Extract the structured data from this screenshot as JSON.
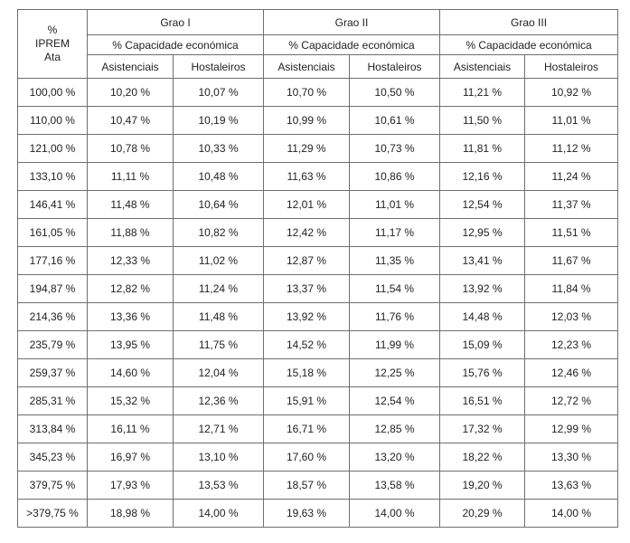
{
  "table": {
    "corner": "% IPREM Ata",
    "groups": [
      {
        "title": "Grao I",
        "subtitle": "% Capacidade económica",
        "columns": [
          "Asistenciais",
          "Hostaleiros"
        ]
      },
      {
        "title": "Grao II",
        "subtitle": "% Capacidade económica",
        "columns": [
          "Asistenciais",
          "Hostaleiros"
        ]
      },
      {
        "title": "Grao III",
        "subtitle": "% Capacidade económica",
        "columns": [
          "Asistenciais",
          "Hostaleiros"
        ]
      }
    ],
    "rows": [
      [
        "100,00 %",
        "10,20 %",
        "10,07 %",
        "10,70 %",
        "10,50 %",
        "11,21 %",
        "10,92 %"
      ],
      [
        "110,00 %",
        "10,47 %",
        "10,19 %",
        "10,99 %",
        "10,61 %",
        "11,50 %",
        "11,01 %"
      ],
      [
        "121,00 %",
        "10,78 %",
        "10,33 %",
        "11,29 %",
        "10,73 %",
        "11,81 %",
        "11,12 %"
      ],
      [
        "133,10 %",
        "11,11 %",
        "10,48 %",
        "11,63 %",
        "10,86 %",
        "12,16 %",
        "11,24 %"
      ],
      [
        "146,41 %",
        "11,48 %",
        "10,64 %",
        "12,01 %",
        "11,01 %",
        "12,54 %",
        "11,37 %"
      ],
      [
        "161,05 %",
        "11,88 %",
        "10,82 %",
        "12,42 %",
        "11,17 %",
        "12,95 %",
        "11,51 %"
      ],
      [
        "177,16 %",
        "12,33 %",
        "11,02 %",
        "12,87 %",
        "11,35 %",
        "13,41 %",
        "11,67 %"
      ],
      [
        "194,87 %",
        "12,82 %",
        "11,24 %",
        "13,37 %",
        "11,54 %",
        "13,92 %",
        "11,84 %"
      ],
      [
        "214,36 %",
        "13,36 %",
        "11,48 %",
        "13,92 %",
        "11,76 %",
        "14,48 %",
        "12,03 %"
      ],
      [
        "235,79 %",
        "13,95 %",
        "11,75 %",
        "14,52 %",
        "11,99 %",
        "15,09 %",
        "12,23 %"
      ],
      [
        "259,37 %",
        "14,60 %",
        "12,04 %",
        "15,18 %",
        "12,25 %",
        "15,76 %",
        "12,46 %"
      ],
      [
        "285,31 %",
        "15,32 %",
        "12,36 %",
        "15,91 %",
        "12,54 %",
        "16,51 %",
        "12,72 %"
      ],
      [
        "313,84 %",
        "16,11 %",
        "12,71 %",
        "16,71 %",
        "12,85 %",
        "17,32 %",
        "12,99 %"
      ],
      [
        "345,23 %",
        "16,97 %",
        "13,10 %",
        "17,60 %",
        "13,20 %",
        "18,22 %",
        "13,30 %"
      ],
      [
        "379,75 %",
        "17,93 %",
        "13,53 %",
        "18,57 %",
        "13,58 %",
        "19,20 %",
        "13,63 %"
      ],
      [
        ">379,75 %",
        "18,98 %",
        "14,00 %",
        "19,63 %",
        "14,00 %",
        "20,29 %",
        "14,00 %"
      ]
    ]
  }
}
